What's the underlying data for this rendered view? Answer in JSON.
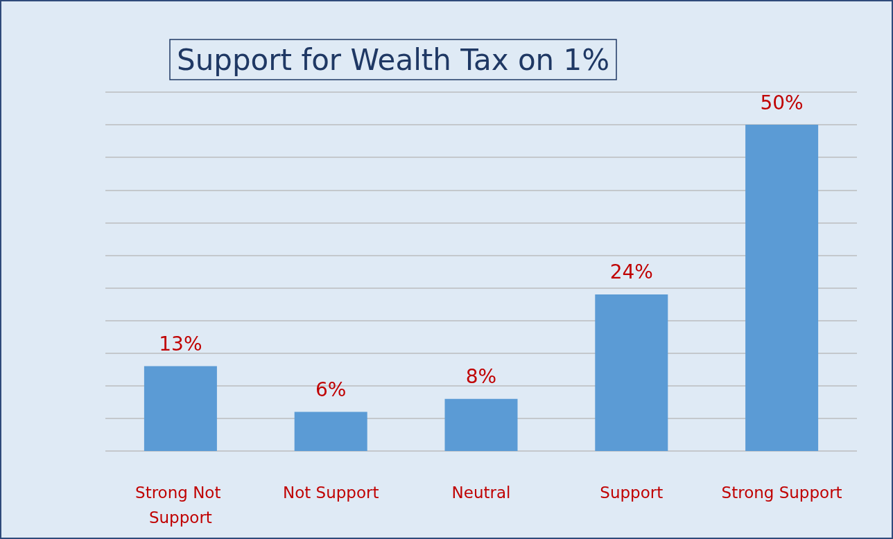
{
  "chart_data": {
    "type": "bar",
    "title": "Support for Wealth Tax on 1%",
    "categories": [
      "Strong Not Support",
      "Not Support",
      "Neutral",
      "Support",
      "Strong Support"
    ],
    "values": [
      13,
      6,
      8,
      24,
      50
    ],
    "color": "#5b9bd5",
    "value_labels": [
      "13%",
      "6%",
      "8%",
      "24%",
      "50%"
    ],
    "ylim": [
      0,
      55
    ],
    "yticks": [
      {
        "value": 0,
        "label": null
      },
      {
        "value": 5,
        "label": null
      },
      {
        "value": 10,
        "label": null
      },
      {
        "value": 15,
        "label": null
      },
      {
        "value": 20,
        "label": null
      },
      {
        "value": 25,
        "label": null
      },
      {
        "value": 30,
        "label": null
      },
      {
        "value": 35,
        "label": null
      },
      {
        "value": 40,
        "label": null
      },
      {
        "value": 45,
        "label": null
      },
      {
        "value": 50,
        "label": null
      },
      {
        "value": 55,
        "label": null
      }
    ],
    "grid": "y"
  }
}
